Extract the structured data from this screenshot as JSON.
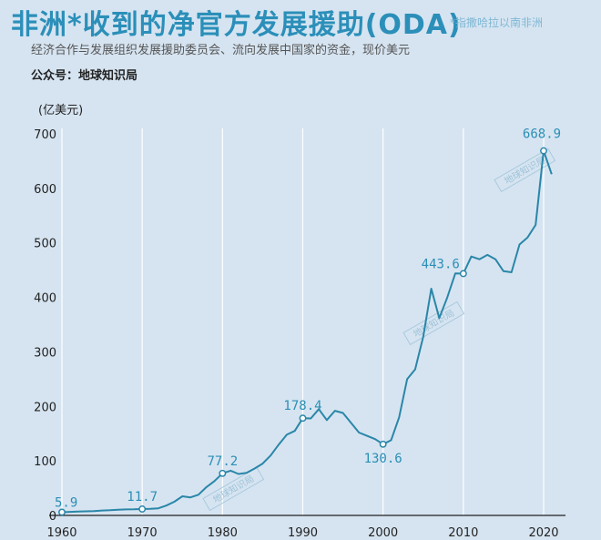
{
  "header": {
    "title": "非洲*收到的净官方发展援助(ODA)",
    "note": "*指撒哈拉以南非洲",
    "subtitle": "经济合作与发展组织发展援助委员会、流向发展中国家的资金，现价美元",
    "source": "公众号：地球知识局"
  },
  "watermarks": [
    "地球知识局",
    "地球知识局",
    "地球知识局"
  ],
  "colors": {
    "line": "#2a86a8",
    "label": "#2a8fb5",
    "grid": "#ffffff",
    "background": "#d6e4f1"
  },
  "chart_data": {
    "type": "line",
    "title": "非洲*收到的净官方发展援助(ODA)",
    "ylabel": "(亿美元)",
    "xlim": [
      1960,
      2022
    ],
    "ylim": [
      0,
      700
    ],
    "xticks": [
      "1960",
      "1970",
      "1980",
      "1990",
      "2000",
      "2010",
      "2020"
    ],
    "yticks": [
      "0",
      "100",
      "200",
      "300",
      "400",
      "500",
      "600",
      "700"
    ],
    "grid": "vertical",
    "x": [
      1960,
      1961,
      1962,
      1963,
      1964,
      1965,
      1966,
      1967,
      1968,
      1969,
      1970,
      1971,
      1972,
      1973,
      1974,
      1975,
      1976,
      1977,
      1978,
      1979,
      1980,
      1981,
      1982,
      1983,
      1984,
      1985,
      1986,
      1987,
      1988,
      1989,
      1990,
      1991,
      1992,
      1993,
      1994,
      1995,
      1996,
      1997,
      1998,
      1999,
      2000,
      2001,
      2002,
      2003,
      2004,
      2005,
      2006,
      2007,
      2008,
      2009,
      2010,
      2011,
      2012,
      2013,
      2014,
      2015,
      2016,
      2017,
      2018,
      2019,
      2020,
      2021
    ],
    "y": [
      5.9,
      6.5,
      7,
      7.5,
      8,
      9,
      9.5,
      10.5,
      11,
      11.2,
      11.7,
      12,
      13,
      18,
      25,
      35,
      33,
      38,
      52,
      63,
      77.2,
      82,
      76,
      78,
      86,
      95,
      110,
      130,
      148,
      155,
      178.4,
      178,
      195,
      175,
      192,
      188,
      170,
      152,
      146,
      140,
      130.6,
      138,
      180,
      250,
      268,
      328,
      416,
      362,
      400,
      444,
      443.6,
      475,
      470,
      478,
      470,
      448,
      446,
      497,
      510,
      533,
      668.9,
      626
    ],
    "markers": [
      {
        "x": 1960,
        "y": 5.9,
        "label": "5.9"
      },
      {
        "x": 1970,
        "y": 11.7,
        "label": "11.7"
      },
      {
        "x": 1980,
        "y": 77.2,
        "label": "77.2"
      },
      {
        "x": 1990,
        "y": 178.4,
        "label": "178.4"
      },
      {
        "x": 2000,
        "y": 130.6,
        "label": "130.6"
      },
      {
        "x": 2010,
        "y": 443.6,
        "label": "443.6"
      },
      {
        "x": 2020,
        "y": 668.9,
        "label": "668.9"
      }
    ]
  }
}
